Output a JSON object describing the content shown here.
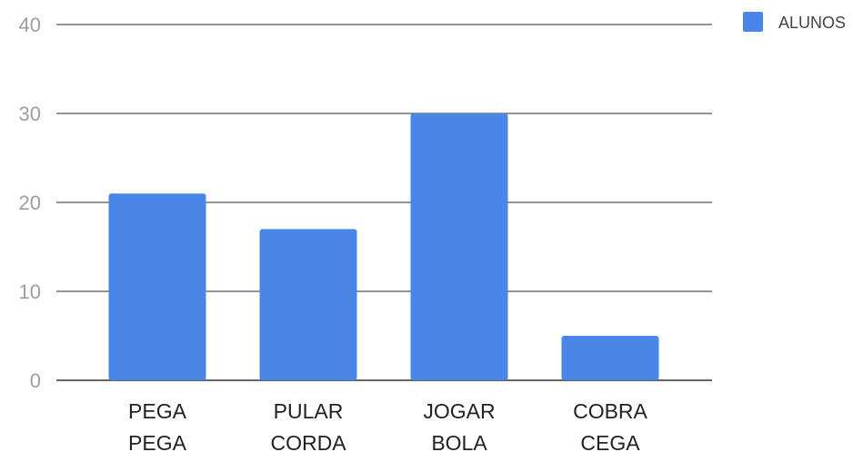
{
  "chart_data": {
    "type": "bar",
    "categories": [
      [
        "PEGA",
        "PEGA"
      ],
      [
        "PULAR",
        "CORDA"
      ],
      [
        "JOGAR",
        "BOLA"
      ],
      [
        "COBRA",
        "CEGA"
      ]
    ],
    "series": [
      {
        "name": "ALUNOS",
        "values": [
          21,
          17,
          30,
          5
        ],
        "color": "#4a86e8"
      }
    ],
    "ylim": [
      0,
      40
    ],
    "yticks": [
      0,
      10,
      20,
      30,
      40
    ],
    "grid": true,
    "legend_position": "top-right",
    "title": "",
    "xlabel": "",
    "ylabel": ""
  }
}
